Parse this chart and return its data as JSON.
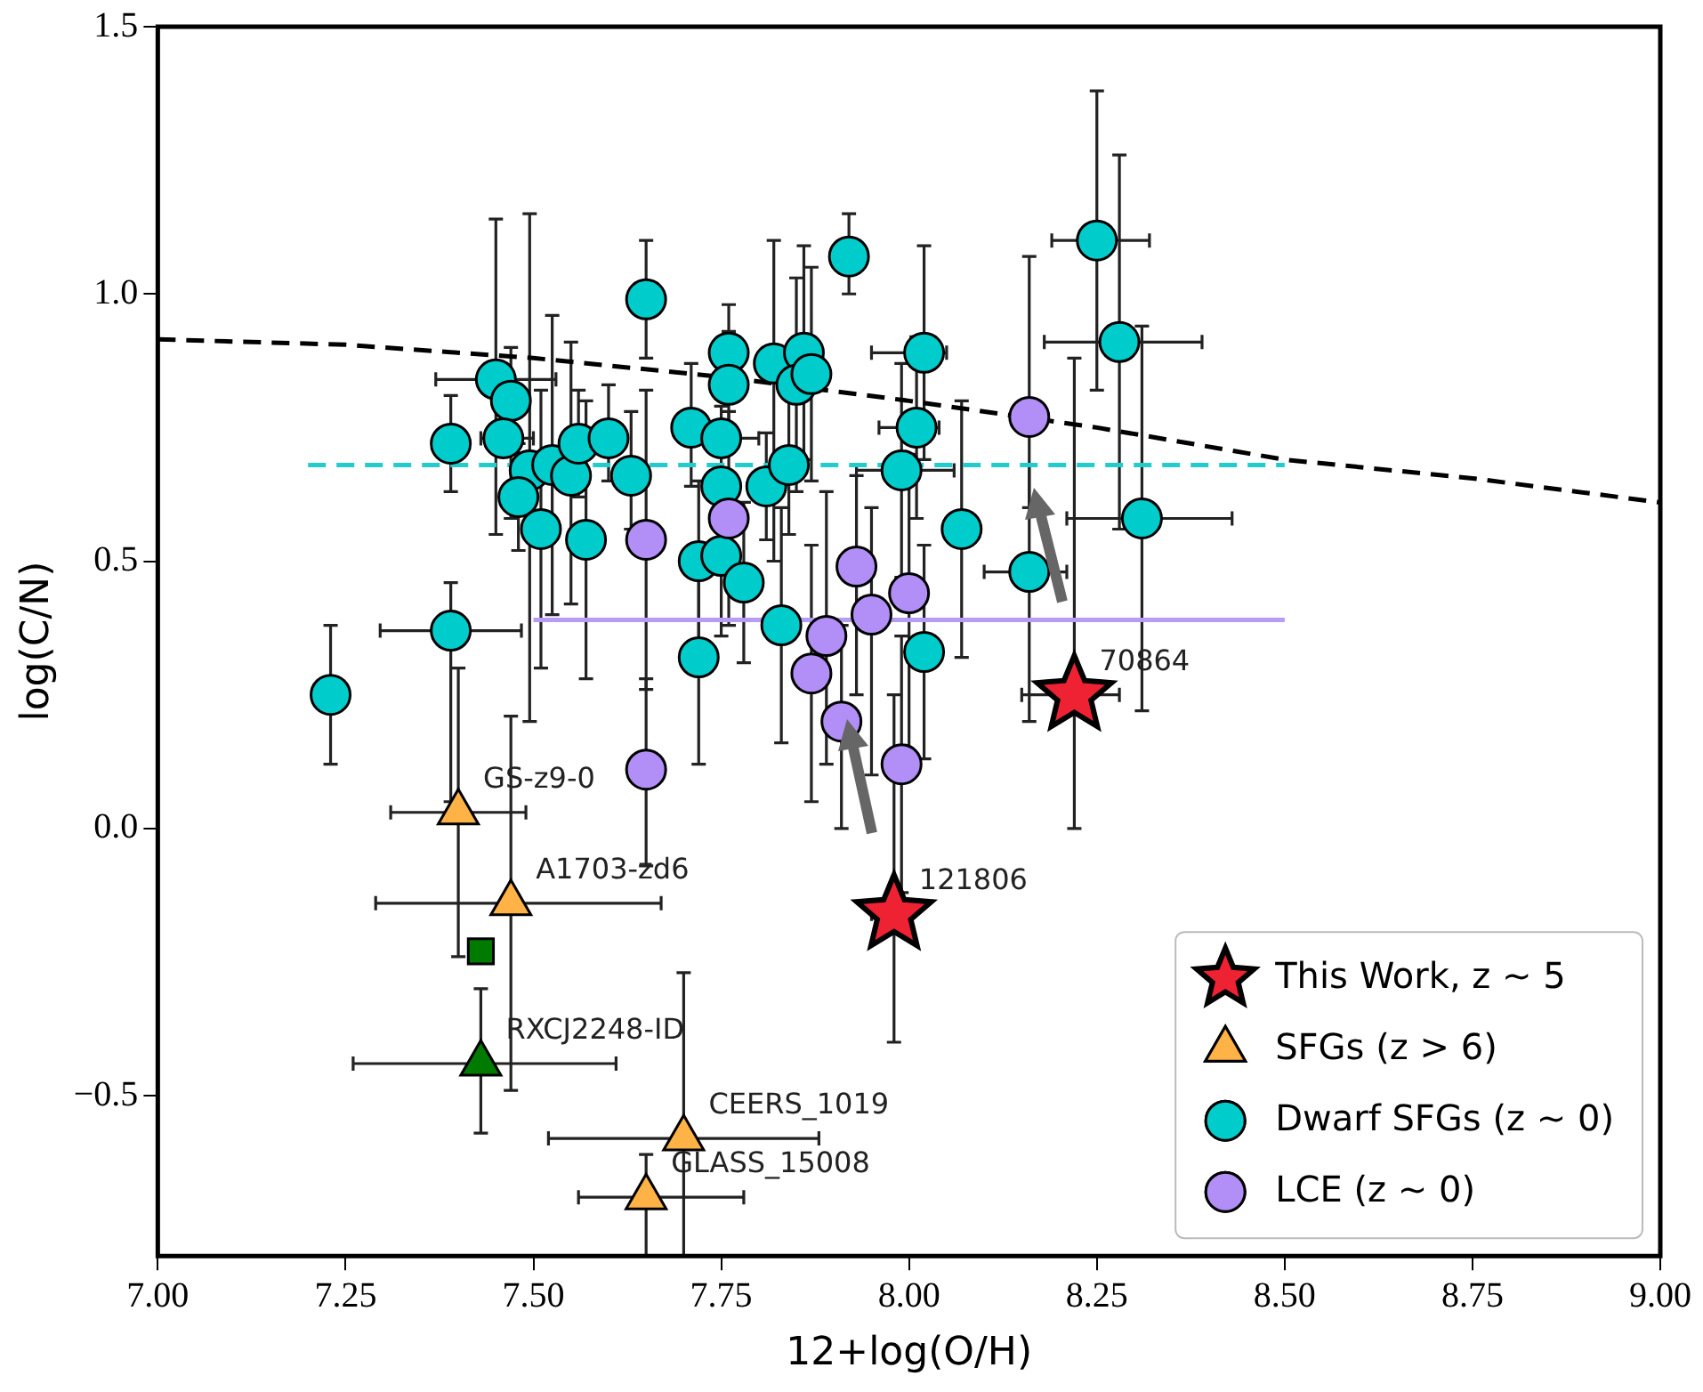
{
  "chart_data": {
    "type": "scatter",
    "xlabel": "12+log(O/H)",
    "ylabel": "log(C/N)",
    "xlim": [
      7.0,
      9.0
    ],
    "ylim": [
      -0.8,
      1.5
    ],
    "xticks": [
      {
        "value": 7.0,
        "label": "7.00"
      },
      7.25,
      {
        "value": 7.5,
        "label": "7.50"
      },
      7.75,
      {
        "value": 8.0,
        "label": "8.00"
      },
      8.25,
      {
        "value": 8.5,
        "label": "8.50"
      },
      8.75,
      {
        "value": 9.0,
        "label": "9.00"
      }
    ],
    "yticks": [
      {
        "value": -0.5,
        "label": "−0.5"
      },
      {
        "value": 0,
        "label": "0.0"
      },
      0.5,
      {
        "value": 1.0,
        "label": "1.0"
      },
      1.5
    ],
    "grid": false,
    "legend": "bottom right",
    "series": [
      {
        "type": "line",
        "color": "#000000",
        "line_style": "dashed",
        "x": [
          7.0,
          7.25,
          7.5,
          7.75,
          8.0,
          8.25,
          8.5,
          8.75,
          9.0
        ],
        "values": [
          0.915,
          0.905,
          0.88,
          0.845,
          0.8,
          0.75,
          0.69,
          0.655,
          0.61
        ]
      },
      {
        "type": "line",
        "color": "#22cccc",
        "line_style": "dashed",
        "x": [
          7.2,
          8.5
        ],
        "values": [
          0.68,
          0.68
        ]
      },
      {
        "type": "line",
        "color": "#b69cf5",
        "line_style": "solid",
        "x": [
          7.5,
          8.5
        ],
        "values": [
          0.39,
          0.39
        ]
      },
      {
        "name": "Dwarf SFGs (z ∼ 0)",
        "color": "#00cccc",
        "marker": "circle",
        "x": [
          7.23,
          7.39,
          7.39,
          7.45,
          7.47,
          7.46,
          7.495,
          7.48,
          7.525,
          7.51,
          7.55,
          7.56,
          7.57,
          7.6,
          7.63,
          7.65,
          7.71,
          7.72,
          7.72,
          7.75,
          7.76,
          7.76,
          7.75,
          7.75,
          7.78,
          7.81,
          7.82,
          7.84,
          7.83,
          7.86,
          7.85,
          7.87,
          7.92,
          8.01,
          7.99,
          8.02,
          8.02,
          8.07,
          8.16,
          8.25,
          8.28,
          8.31
        ],
        "values": [
          0.25,
          0.72,
          0.37,
          0.84,
          0.8,
          0.73,
          0.67,
          0.62,
          0.68,
          0.56,
          0.66,
          0.72,
          0.54,
          0.73,
          0.66,
          0.99,
          0.75,
          0.5,
          0.32,
          0.73,
          0.89,
          0.83,
          0.64,
          0.51,
          0.46,
          0.64,
          0.87,
          0.68,
          0.38,
          0.89,
          0.83,
          0.85,
          1.07,
          0.75,
          0.67,
          0.89,
          0.33,
          0.56,
          0.48,
          1.1,
          0.91,
          0.58
        ],
        "errors": [
          0.13,
          0.09,
          [
            0.05,
            0.46
          ],
          [
            0.55,
            1.14
          ],
          [
            0.58,
            0.9
          ],
          null,
          [
            0.2,
            1.15
          ],
          0.1,
          [
            0.4,
            0.96
          ],
          [
            0.3,
            0.82
          ],
          [
            0.42,
            0.91
          ],
          0.1,
          [
            0.28,
            0.8
          ],
          [
            0.65,
            0.83
          ],
          [
            0.56,
            0.78
          ],
          [
            0.88,
            1.1
          ],
          [
            0.64,
            0.87
          ],
          0.15,
          [
            0.12,
            0.5
          ],
          null,
          0.09,
          0.1,
          0.15,
          0.15,
          0.15,
          0.1,
          [
            0.5,
            1.1
          ],
          0.13,
          [
            0.16,
            0.6
          ],
          0.2,
          0.2,
          0.2,
          [
            1.0,
            1.15
          ],
          0.17,
          0.2,
          0.2,
          0.2,
          [
            0.32,
            0.8
          ],
          [
            0.2,
            0.68
          ],
          [
            0.82,
            1.38
          ],
          [
            0.56,
            1.26
          ],
          [
            0.22,
            0.94
          ]
        ],
        "xerrors": [
          null,
          null,
          0.094,
          [
            7.37,
            7.53
          ],
          null,
          [
            7.43,
            7.5
          ],
          null,
          null,
          null,
          null,
          null,
          null,
          null,
          null,
          null,
          null,
          null,
          null,
          null,
          [
            7.72,
            7.8
          ],
          null,
          null,
          null,
          null,
          null,
          null,
          null,
          null,
          null,
          null,
          null,
          null,
          null,
          [
            7.96,
            8.04
          ],
          [
            7.93,
            8.06
          ],
          [
            7.95,
            8.05
          ],
          null,
          null,
          [
            8.1,
            8.21
          ],
          [
            8.19,
            8.32
          ],
          [
            8.18,
            8.39
          ],
          [
            8.21,
            8.43
          ]
        ]
      },
      {
        "name": "LCE (z ∼ 0)",
        "color": "#b28ef7",
        "marker": "circle",
        "x": [
          7.65,
          7.65,
          7.76,
          7.89,
          7.87,
          7.93,
          7.91,
          7.95,
          8.0,
          7.99,
          8.16
        ],
        "values": [
          0.54,
          0.11,
          0.58,
          0.36,
          0.29,
          0.49,
          0.2,
          0.4,
          0.44,
          0.12,
          0.77
        ],
        "errors": [
          [
            0.26,
            0.82
          ],
          [
            -0.07,
            0.28
          ],
          0.2,
          [
            0.12,
            0.63
          ],
          [
            0.05,
            0.53
          ],
          [
            0.25,
            0.66
          ],
          [
            0.0,
            0.38
          ],
          [
            0.1,
            0.6
          ],
          [
            0.14,
            0.7
          ],
          [
            -0.12,
            0.36
          ],
          [
            0.6,
            1.07
          ]
        ]
      },
      {
        "color": "#007a00",
        "marker": "square",
        "x": [
          7.43
        ],
        "values": [
          -0.23
        ]
      },
      {
        "color": "#007a00",
        "marker": "triangle",
        "x": [
          7.43
        ],
        "values": [
          -0.44
        ],
        "errors": [
          [
            -0.57,
            -0.3
          ]
        ],
        "xerrors": [
          [
            7.26,
            7.61
          ]
        ]
      },
      {
        "name": "SFGs (z > 6)",
        "color": "#ffb347",
        "marker": "triangle",
        "x": [
          7.4,
          7.47,
          7.7,
          7.65
        ],
        "values": [
          0.03,
          -0.14,
          -0.58,
          -0.69
        ],
        "errors": [
          0.27,
          [
            -0.49,
            0.21
          ],
          [
            -0.8,
            -0.27
          ],
          [
            -0.8,
            -0.61
          ]
        ],
        "xerrors": [
          0.09,
          [
            7.29,
            7.67
          ],
          [
            7.52,
            7.88
          ],
          [
            7.56,
            7.78
          ]
        ]
      },
      {
        "name": "This Work, z ∼ 5",
        "color": "#ee2233",
        "marker": "star",
        "x": [
          8.22,
          7.98
        ],
        "values": [
          0.25,
          -0.16
        ],
        "errors": [
          [
            0.0,
            0.88
          ],
          [
            -0.4,
            0.25
          ]
        ],
        "xerrors": [
          [
            8.15,
            8.28
          ],
          [
            7.95,
            8.0
          ]
        ]
      }
    ],
    "annotations": [
      {
        "text": "GS-z9-0",
        "x": 7.4,
        "y": 0.03
      },
      {
        "text": "A1703-zd6",
        "x": 7.47,
        "y": -0.14
      },
      {
        "text": "RXCJ2248-ID",
        "x": 7.43,
        "y": -0.44
      },
      {
        "text": "CEERS_1019",
        "x": 7.7,
        "y": -0.58
      },
      {
        "text": "GLASS_15008",
        "x": 7.65,
        "y": -0.69
      },
      {
        "text": "70864",
        "x": 8.22,
        "y": 0.25
      },
      {
        "text": "121806",
        "x": 7.98,
        "y": -0.16
      }
    ]
  }
}
